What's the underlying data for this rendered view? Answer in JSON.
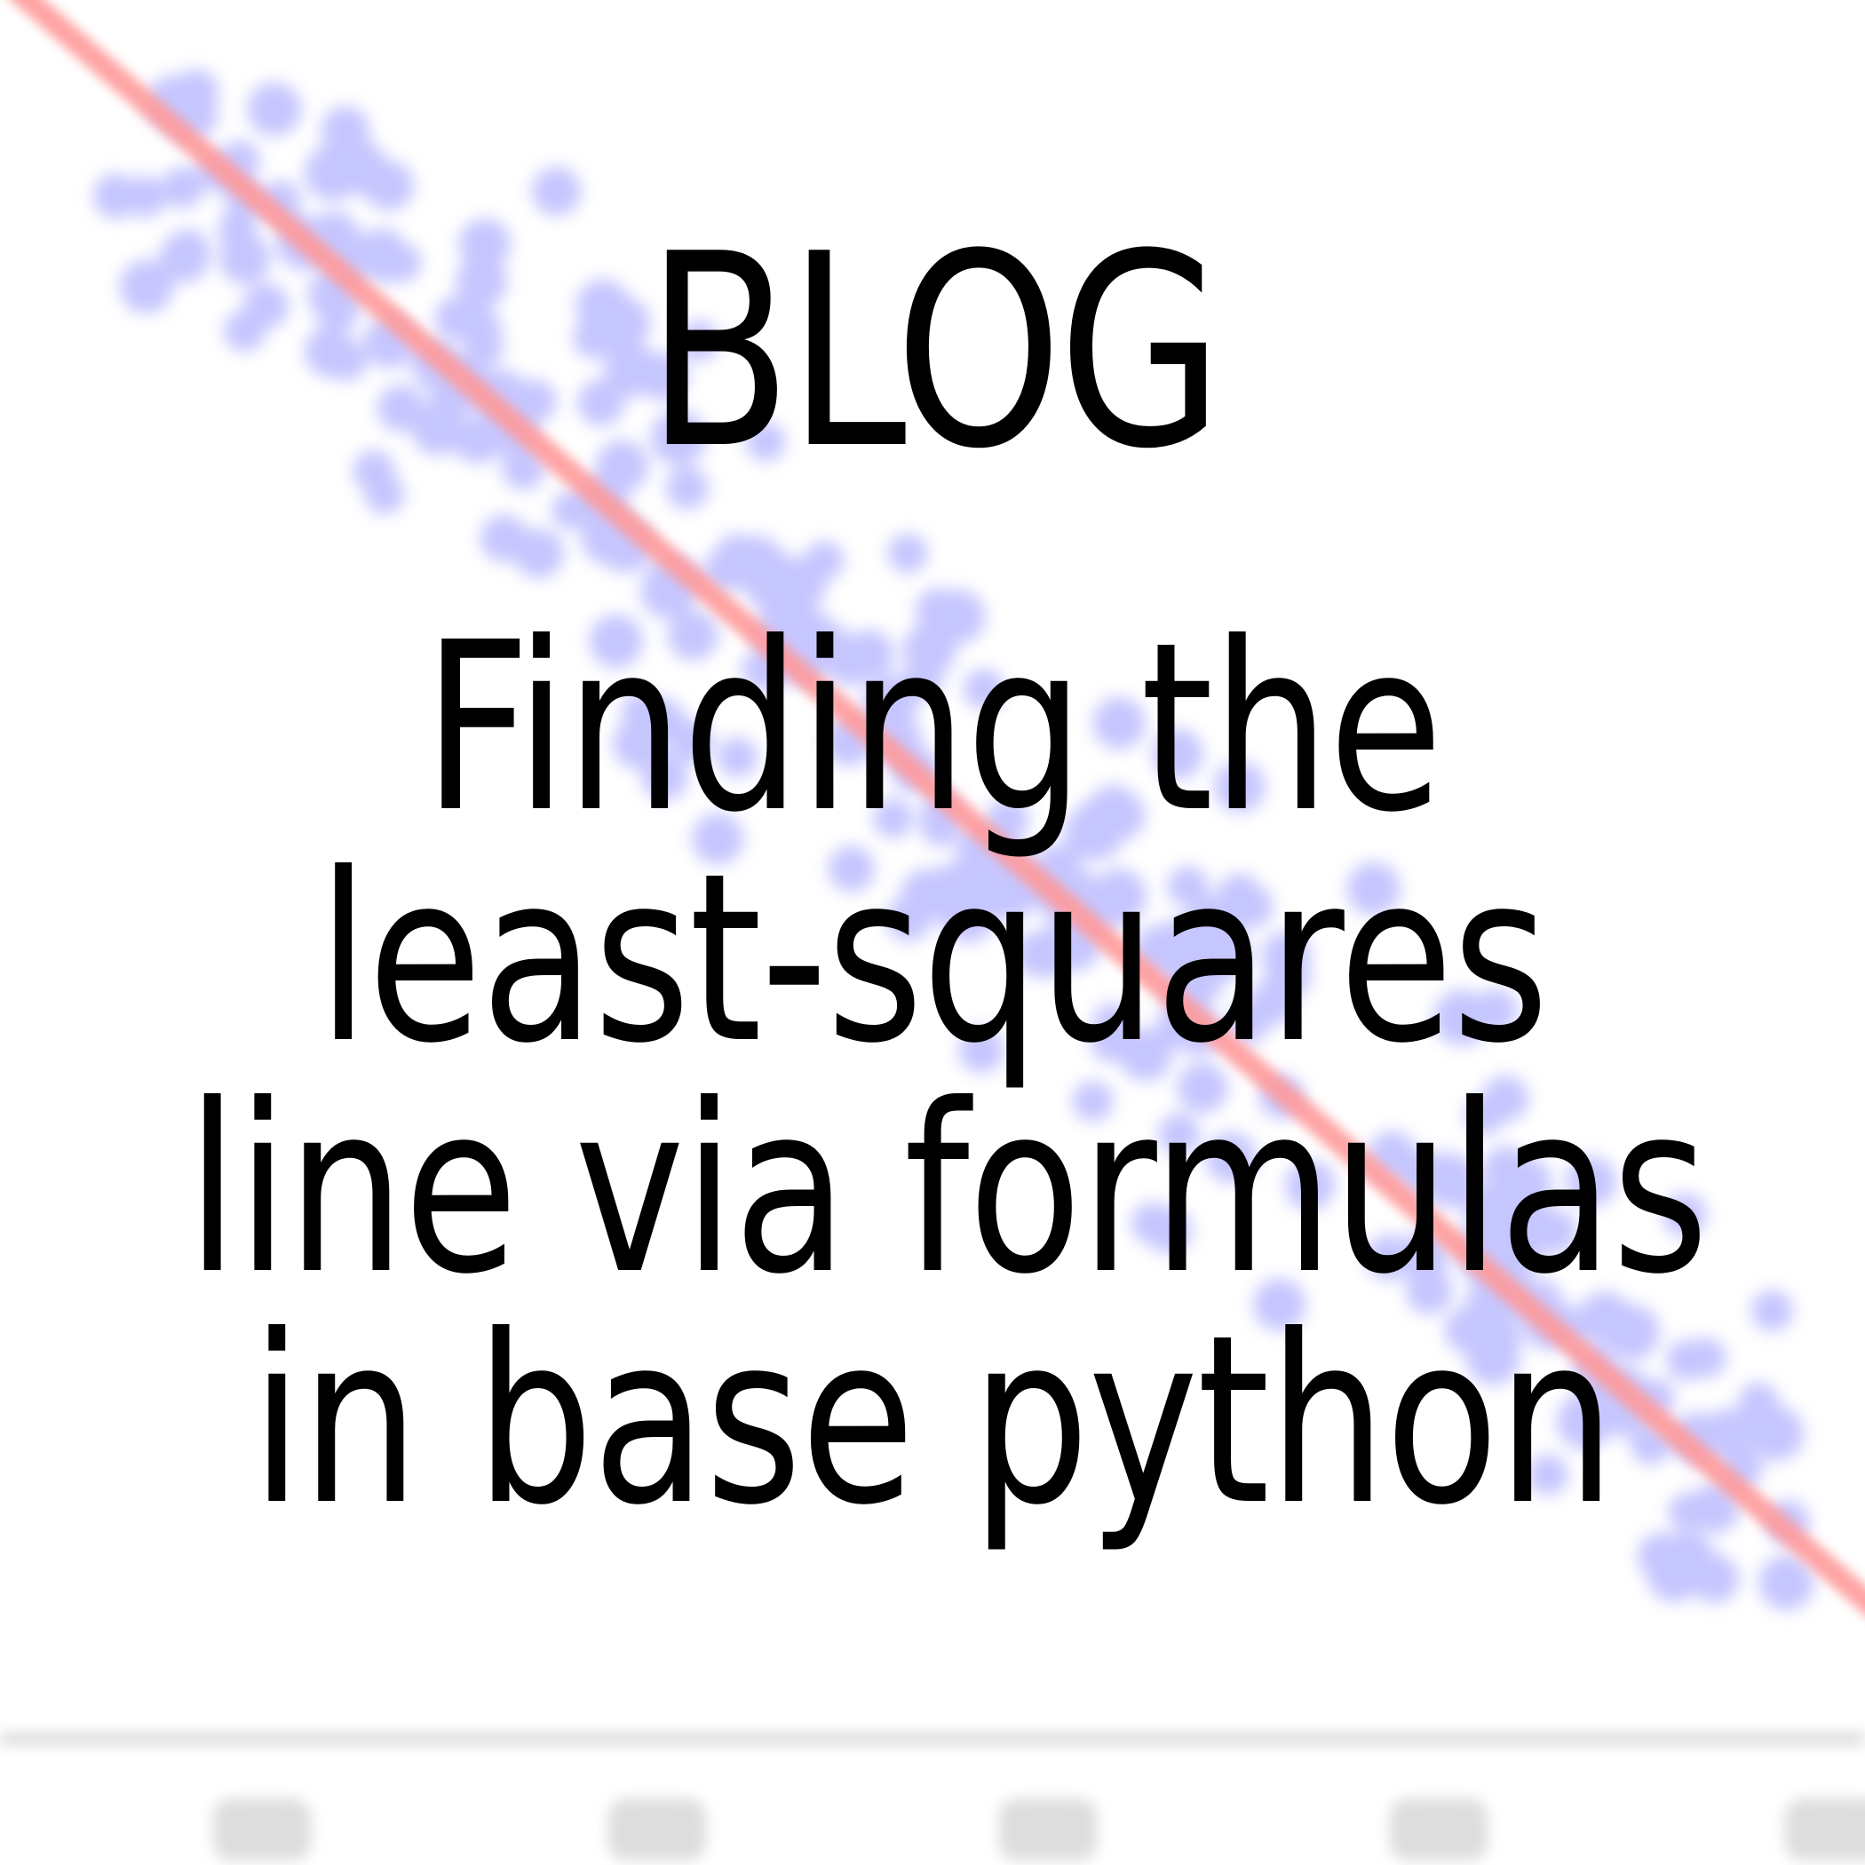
{
  "header": {
    "label": "BLOG"
  },
  "post": {
    "title_lines": [
      "Finding the",
      "least-squares",
      "line via formulas",
      "in base python"
    ]
  },
  "background": {
    "type": "blurred scatter plot with fitted line",
    "point_color": "#aaaaff",
    "line_color": "#ff9999",
    "axis_color": "#cccccc"
  }
}
